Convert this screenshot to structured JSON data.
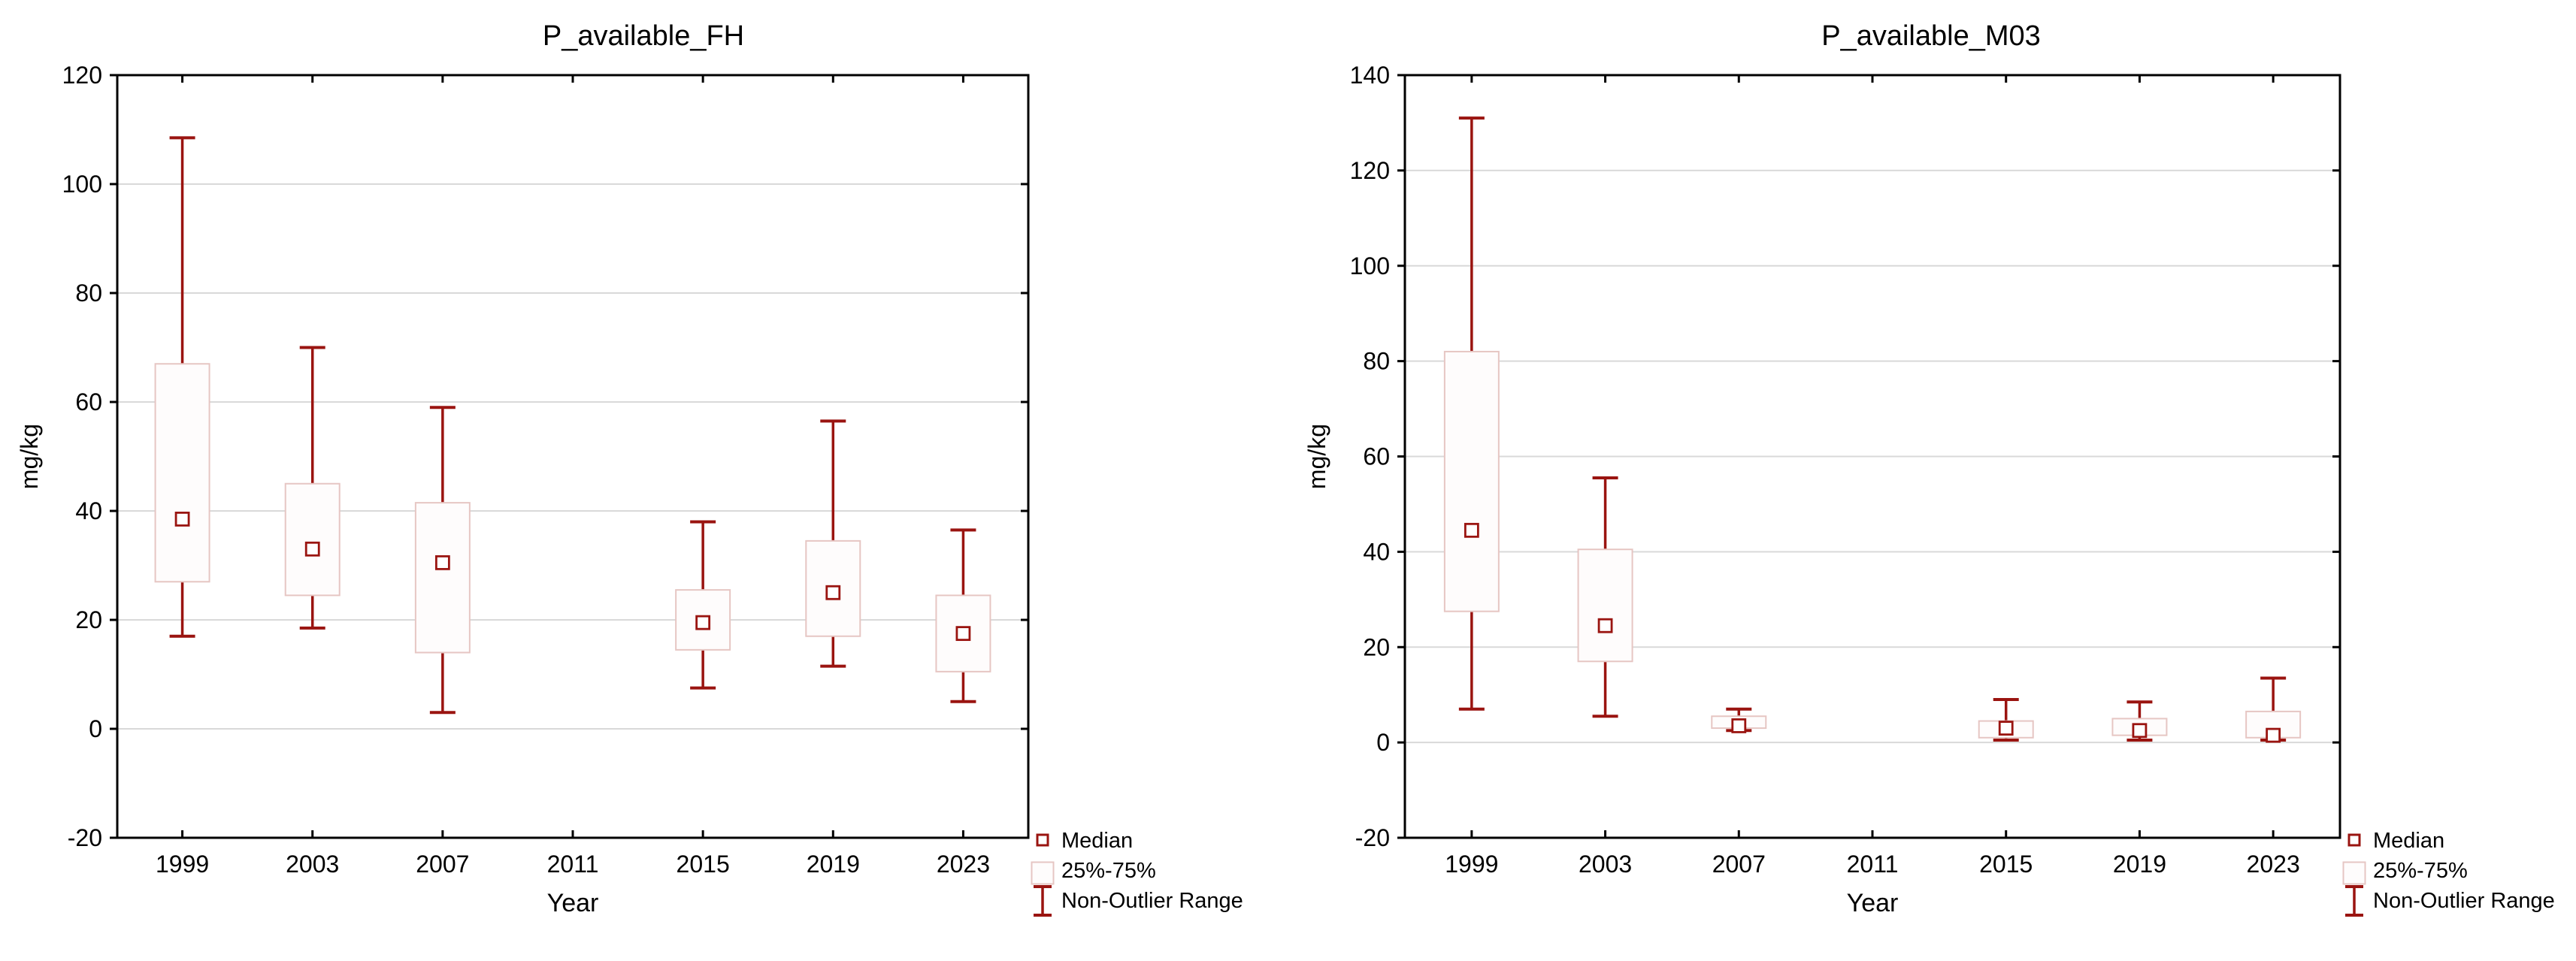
{
  "page": {
    "background": "#FFFFFF"
  },
  "colors": {
    "median_and_whisker": "#9A1410",
    "box_border": "#E6C6C3",
    "box_fill": "#FEFCFC",
    "median_fill": "#FFFFFF",
    "gridline": "#D9D9D9",
    "axis": "#000000",
    "text": "#000000"
  },
  "legend": {
    "items": [
      {
        "icon": "median-marker-icon",
        "label": "Median"
      },
      {
        "icon": "iqr-box-icon",
        "label": "25%-75%"
      },
      {
        "icon": "non-outlier-range-icon",
        "label": "Non-Outlier Range"
      }
    ]
  },
  "chart_data": [
    {
      "type": "box",
      "title": "P_available_FH",
      "xlabel": "Year",
      "ylabel": "mg/kg",
      "ylim": [
        -20,
        120
      ],
      "yticks": [
        -20,
        0,
        20,
        40,
        60,
        80,
        100,
        120
      ],
      "grid": "horizontal",
      "legend_position": "bottom-right",
      "categories": [
        "1999",
        "2003",
        "2007",
        "2011",
        "2015",
        "2019",
        "2023"
      ],
      "series": [
        {
          "category": "1999",
          "low": 17,
          "q1": 27,
          "median": 38.5,
          "q3": 67,
          "high": 108.5
        },
        {
          "category": "2003",
          "low": 18.5,
          "q1": 24.5,
          "median": 33,
          "q3": 45,
          "high": 70
        },
        {
          "category": "2007",
          "low": 3,
          "q1": 14,
          "median": 30.5,
          "q3": 41.5,
          "high": 59
        },
        null,
        {
          "category": "2015",
          "low": 7.5,
          "q1": 14.5,
          "median": 19.5,
          "q3": 25.5,
          "high": 38
        },
        {
          "category": "2019",
          "low": 11.5,
          "q1": 17,
          "median": 25,
          "q3": 34.5,
          "high": 56.5
        },
        {
          "category": "2023",
          "low": 5,
          "q1": 10.5,
          "median": 17.5,
          "q3": 24.5,
          "high": 36.5
        }
      ]
    },
    {
      "type": "box",
      "title": "P_available_M03",
      "xlabel": "Year",
      "ylabel": "mg/kg",
      "ylim": [
        -20,
        140
      ],
      "yticks": [
        -20,
        0,
        20,
        40,
        60,
        80,
        100,
        120,
        140
      ],
      "grid": "horizontal",
      "legend_position": "bottom-right",
      "categories": [
        "1999",
        "2003",
        "2007",
        "2011",
        "2015",
        "2019",
        "2023"
      ],
      "series": [
        {
          "category": "1999",
          "low": 7,
          "q1": 27.5,
          "median": 44.5,
          "q3": 82,
          "high": 131
        },
        {
          "category": "2003",
          "low": 5.5,
          "q1": 17,
          "median": 24.5,
          "q3": 40.5,
          "high": 55.5
        },
        {
          "category": "2007",
          "low": 2.5,
          "q1": 3,
          "median": 3.5,
          "q3": 5.5,
          "high": 7
        },
        null,
        {
          "category": "2015",
          "low": 0.5,
          "q1": 1,
          "median": 3,
          "q3": 4.5,
          "high": 9
        },
        {
          "category": "2019",
          "low": 0.5,
          "q1": 1.5,
          "median": 2.5,
          "q3": 5,
          "high": 8.5
        },
        {
          "category": "2023",
          "low": 0.5,
          "q1": 1,
          "median": 1.5,
          "q3": 6.5,
          "high": 13.5
        }
      ]
    }
  ]
}
